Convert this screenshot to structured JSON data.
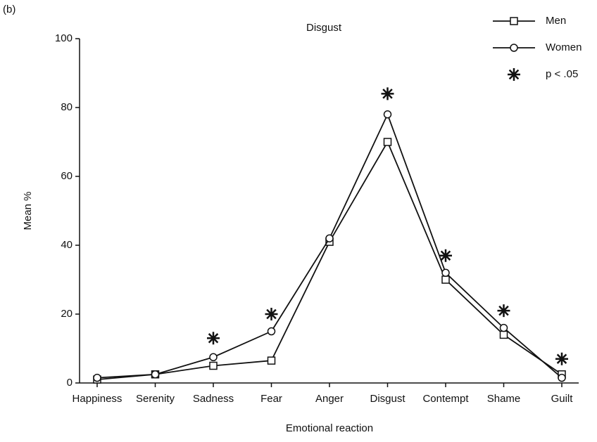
{
  "chart_data": {
    "type": "line",
    "panel_label": "(b)",
    "title": "Disgust",
    "xlabel": "Emotional reaction",
    "ylabel": "Mean %",
    "categories": [
      "Happiness",
      "Serenity",
      "Sadness",
      "Fear",
      "Anger",
      "Disgust",
      "Contempt",
      "Shame",
      "Guilt"
    ],
    "series": [
      {
        "name": "Men",
        "color": "#111111",
        "marker": "square",
        "values": [
          1,
          2.5,
          5,
          6.5,
          41,
          70,
          30,
          14,
          2.5
        ]
      },
      {
        "name": "Women",
        "color": "#111111",
        "marker": "circle",
        "values": [
          1.5,
          2.5,
          7.5,
          15,
          42,
          78,
          32,
          16,
          1.5
        ]
      },
      {
        "name": "p < .05",
        "color": "#111111",
        "marker": "asterisk",
        "values": [
          null,
          null,
          13,
          20,
          null,
          84,
          37,
          21,
          7
        ]
      }
    ],
    "ylim": [
      0,
      100
    ],
    "yticks": [
      0,
      20,
      40,
      60,
      80,
      100
    ],
    "legend": "upper right"
  }
}
